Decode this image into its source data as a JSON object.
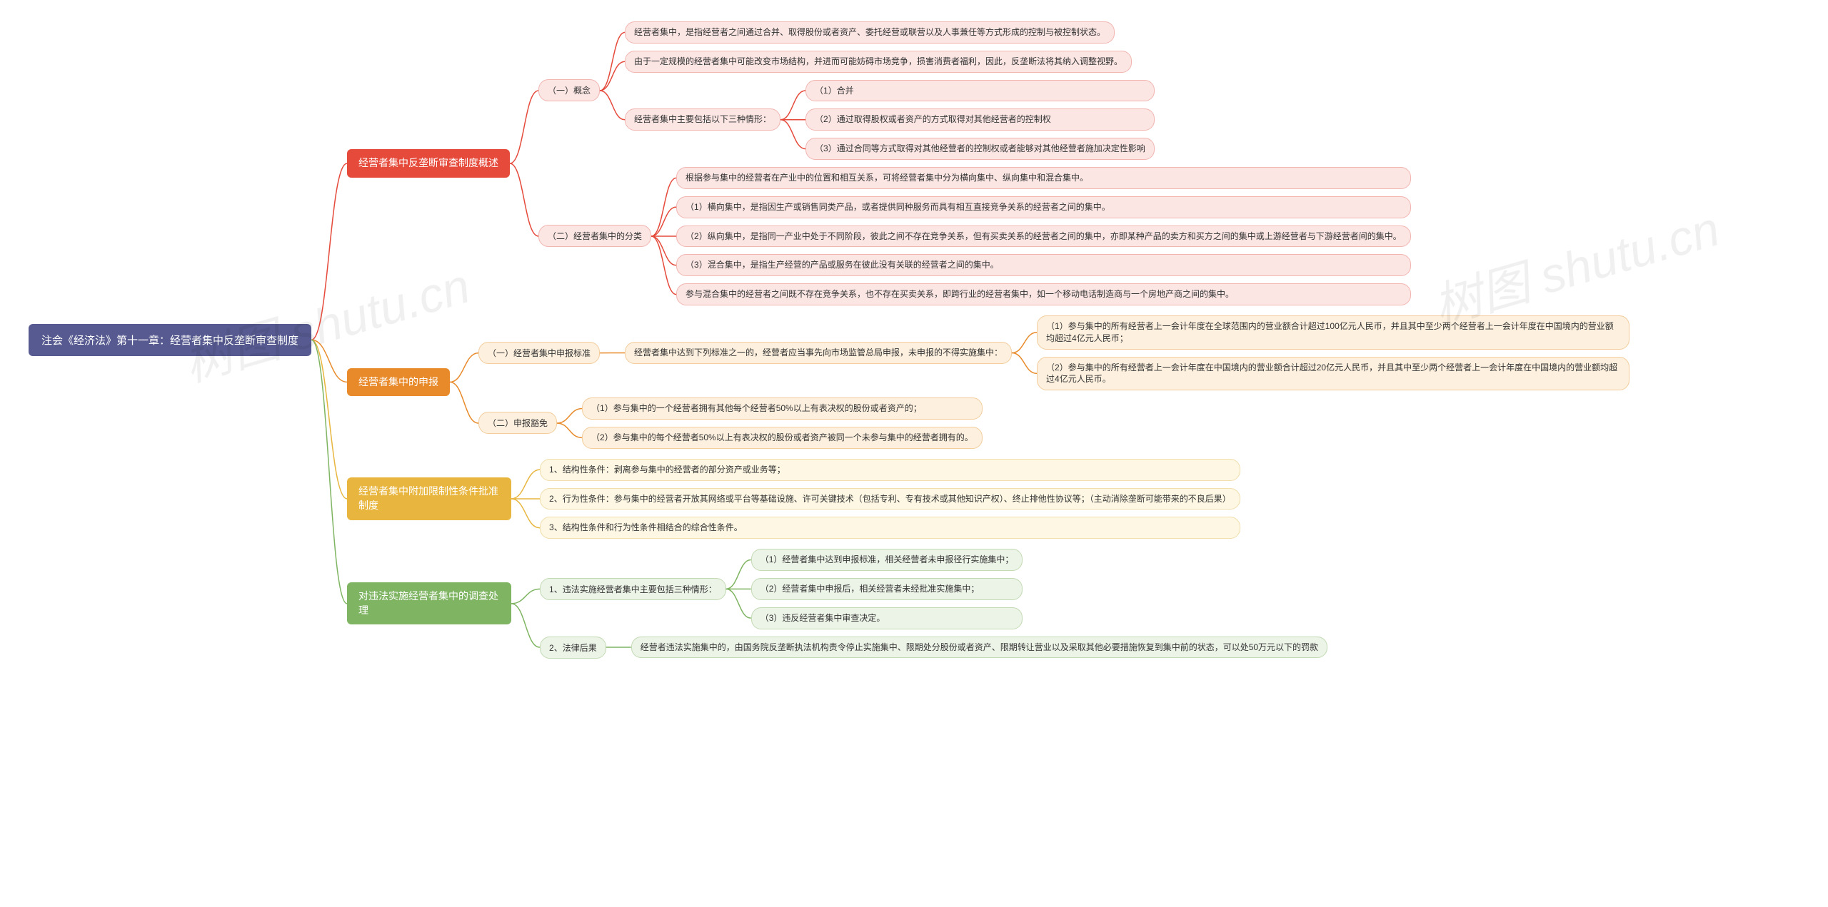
{
  "watermark": "树图 shutu.cn",
  "colors": {
    "root_bg": "#565a90",
    "root_text": "#ffffff",
    "branches": {
      "red": {
        "header_bg": "#e54a3b",
        "leaf_bg": "#fbe6e4",
        "leaf_border": "#f2b5b0"
      },
      "orange": {
        "header_bg": "#e88a2a",
        "leaf_bg": "#fdf0de",
        "leaf_border": "#f3cd9c"
      },
      "yellow": {
        "header_bg": "#e8b63f",
        "leaf_bg": "#fdf7e3",
        "leaf_border": "#f0deab"
      },
      "green": {
        "header_bg": "#7fb562",
        "leaf_bg": "#ecf3e7",
        "leaf_border": "#c3dab4"
      }
    },
    "page_bg": "#ffffff",
    "watermark_color": "rgba(0,0,0,0.06)"
  },
  "typography": {
    "root_fontsize": 15,
    "lvl1_fontsize": 14,
    "leaf_fontsize": 12,
    "watermark_fontsize": 68,
    "font_family": "Microsoft YaHei"
  },
  "layout": {
    "type": "mindmap",
    "direction": "right",
    "node_radius": 14,
    "lvl1_radius": 6,
    "child_gap": 14,
    "sub_gap": 10,
    "connector_len": 40
  },
  "root": {
    "label": "注会《经济法》第十一章：经营者集中反垄断审查制度"
  },
  "branches": [
    {
      "color": "red",
      "label": "经营者集中反垄断审查制度概述",
      "children": [
        {
          "label": "（一）概念",
          "children": [
            {
              "label": "经营者集中，是指经营者之间通过合并、取得股份或者资产、委托经营或联营以及人事兼任等方式形成的控制与被控制状态。"
            },
            {
              "label": "由于一定规模的经营者集中可能改变市场结构，并进而可能妨碍市场竞争，损害消费者福利，因此，反垄断法将其纳入调整视野。"
            },
            {
              "label": "经营者集中主要包括以下三种情形：",
              "children": [
                {
                  "label": "（1）合并"
                },
                {
                  "label": "（2）通过取得股权或者资产的方式取得对其他经营者的控制权"
                },
                {
                  "label": "（3）通过合同等方式取得对其他经营者的控制权或者能够对其他经营者施加决定性影响"
                }
              ]
            }
          ]
        },
        {
          "label": "（二）经营者集中的分类",
          "children": [
            {
              "label": "根据参与集中的经营者在产业中的位置和相互关系，可将经营者集中分为横向集中、纵向集中和混合集中。"
            },
            {
              "label": "（1）横向集中，是指因生产或销售同类产品，或者提供同种服务而具有相互直接竞争关系的经营者之间的集中。"
            },
            {
              "label": "（2）纵向集中，是指同一产业中处于不同阶段，彼此之间不存在竞争关系，但有买卖关系的经营者之间的集中，亦即某种产品的卖方和买方之间的集中或上游经营者与下游经营者间的集中。"
            },
            {
              "label": "（3）混合集中，是指生产经营的产品或服务在彼此没有关联的经营者之间的集中。"
            },
            {
              "label": "参与混合集中的经营者之间既不存在竞争关系，也不存在买卖关系，即跨行业的经营者集中，如一个移动电话制造商与一个房地产商之间的集中。"
            }
          ]
        }
      ]
    },
    {
      "color": "orange",
      "label": "经营者集中的申报",
      "children": [
        {
          "label": "（一）经营者集中申报标准",
          "children": [
            {
              "label": "经营者集中达到下列标准之一的，经营者应当事先向市场监管总局申报，未申报的不得实施集中：",
              "children": [
                {
                  "label": "（1）参与集中的所有经营者上一会计年度在全球范围内的营业额合计超过100亿元人民币，并且其中至少两个经营者上一会计年度在中国境内的营业额均超过4亿元人民币；"
                },
                {
                  "label": "（2）参与集中的所有经营者上一会计年度在中国境内的营业额合计超过20亿元人民币，并且其中至少两个经营者上一会计年度在中国境内的营业额均超过4亿元人民币。"
                }
              ]
            }
          ]
        },
        {
          "label": "（二）申报豁免",
          "children": [
            {
              "label": "（1）参与集中的一个经营者拥有其他每个经营者50%以上有表决权的股份或者资产的；"
            },
            {
              "label": "（2）参与集中的每个经营者50%以上有表决权的股份或者资产被同一个未参与集中的经营者拥有的。"
            }
          ]
        }
      ]
    },
    {
      "color": "yellow",
      "label": "经营者集中附加限制性条件批准制度",
      "children": [
        {
          "label": "1、结构性条件：剥离参与集中的经营者的部分资产或业务等；"
        },
        {
          "label": "2、行为性条件：参与集中的经营者开放其网络或平台等基础设施、许可关键技术（包括专利、专有技术或其他知识产权）、终止排他性协议等；（主动消除垄断可能带来的不良后果）"
        },
        {
          "label": "3、结构性条件和行为性条件相结合的综合性条件。"
        }
      ]
    },
    {
      "color": "green",
      "label": "对违法实施经营者集中的调查处理",
      "children": [
        {
          "label": "1、违法实施经营者集中主要包括三种情形：",
          "children": [
            {
              "label": "（1）经营者集中达到申报标准，相关经营者未申报径行实施集中；"
            },
            {
              "label": "（2）经营者集中申报后，相关经营者未经批准实施集中；"
            },
            {
              "label": "（3）违反经营者集中审查决定。"
            }
          ]
        },
        {
          "label": "2、法律后果",
          "children": [
            {
              "label": "经营者违法实施集中的，由国务院反垄断执法机构责令停止实施集中、限期处分股份或者资产、限期转让营业以及采取其他必要措施恢复到集中前的状态，可以处50万元以下的罚款"
            }
          ]
        }
      ]
    }
  ]
}
